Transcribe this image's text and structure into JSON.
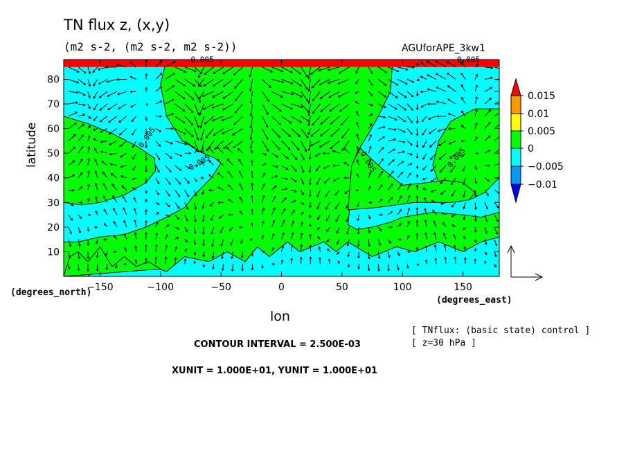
{
  "chart_data": {
    "type": "contour",
    "title": "TN flux z, (x,y)",
    "subtitle": "(m2 s-2, (m2 s-2, m2 s-2))",
    "experiment": "AGUforAPE_3kw1",
    "xlabel": "lon",
    "ylabel": "latitude",
    "x_units": "(degrees_east)",
    "y_units": "(degrees_north)",
    "xlim": [
      -180,
      180
    ],
    "ylim": [
      0,
      88
    ],
    "xticks": [
      -150,
      -100,
      -50,
      0,
      50,
      100,
      150
    ],
    "yticks": [
      10,
      20,
      30,
      40,
      50,
      60,
      70,
      80
    ],
    "colorbar": {
      "levels": [
        "0.015",
        "0.01",
        "0.005",
        "0",
        "−0.005",
        "−0.01"
      ],
      "colors": [
        "#ff0000",
        "#ff9900",
        "#ffff00",
        "#00ff00",
        "#00ffff",
        "#0099ff",
        "#0000ff"
      ]
    },
    "contour_labels": [
      "0.005",
      "0.005",
      "0.005",
      "0.005",
      "0.005",
      "0.005"
    ],
    "notes": [
      "[ TNflux: (basic state) control ]",
      "[ z=30 hPa ]"
    ],
    "contour_interval": "CONTOUR INTERVAL = 2.500E-03",
    "vector_units": "XUNIT = 1.000E+01, YUNIT = 1.000E+01"
  }
}
